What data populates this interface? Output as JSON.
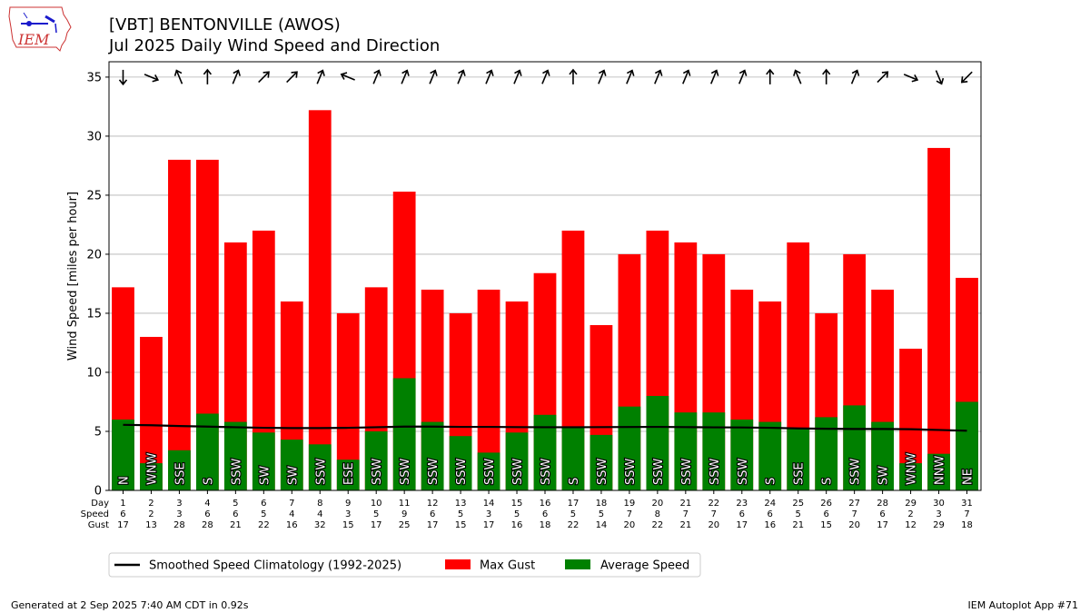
{
  "header": {
    "title_line1": "[VBT] BENTONVILLE (AWOS)",
    "title_line2": "Jul 2025 Daily Wind Speed and Direction",
    "logo_text": "IEM"
  },
  "footer": {
    "generated": "Generated at 2 Sep 2025 7:40 AM CDT in 0.92s",
    "app": "IEM Autoplot App #71"
  },
  "colors": {
    "gust": "#ff0000",
    "average": "#008000",
    "climatology": "#000000",
    "grid": "#b0b0b0"
  },
  "chart_data": {
    "type": "bar",
    "ylabel": "Wind Speed [miles per hour]",
    "ylim": [
      0,
      36.3
    ],
    "yticks": [
      0,
      5,
      10,
      15,
      20,
      25,
      30,
      35
    ],
    "grid": "horizontal",
    "legend_position": "bottom",
    "row_labels": [
      "Day",
      "Speed",
      "Gust"
    ],
    "days": [
      1,
      2,
      3,
      4,
      5,
      6,
      7,
      8,
      9,
      10,
      11,
      12,
      13,
      14,
      15,
      16,
      17,
      18,
      19,
      20,
      21,
      22,
      23,
      24,
      25,
      26,
      27,
      28,
      29,
      30,
      31
    ],
    "speed_labels": [
      6,
      2,
      3,
      6,
      6,
      5,
      4,
      4,
      3,
      5,
      9,
      6,
      5,
      3,
      5,
      6,
      5,
      5,
      7,
      8,
      7,
      7,
      6,
      6,
      5,
      6,
      7,
      6,
      2,
      3,
      7
    ],
    "gust_labels": [
      17,
      13,
      28,
      28,
      21,
      22,
      16,
      32,
      15,
      17,
      25,
      17,
      15,
      17,
      16,
      18,
      22,
      14,
      20,
      22,
      21,
      20,
      17,
      16,
      21,
      15,
      20,
      17,
      12,
      29,
      18
    ],
    "direction_labels": [
      "N",
      "WNW",
      "SSE",
      "S",
      "SSW",
      "SW",
      "SW",
      "SSW",
      "ESE",
      "SSW",
      "SSW",
      "SSW",
      "SSW",
      "SSW",
      "SSW",
      "SSW",
      "S",
      "SSW",
      "SSW",
      "SSW",
      "SSW",
      "SSW",
      "SSW",
      "S",
      "SSE",
      "S",
      "SSW",
      "SW",
      "WNW",
      "NNW",
      "NE"
    ],
    "direction_degrees": [
      0,
      292.5,
      157.5,
      180,
      202.5,
      225,
      225,
      202.5,
      112.5,
      202.5,
      202.5,
      202.5,
      202.5,
      202.5,
      202.5,
      202.5,
      180,
      202.5,
      202.5,
      202.5,
      202.5,
      202.5,
      202.5,
      180,
      157.5,
      180,
      202.5,
      225,
      292.5,
      337.5,
      45
    ],
    "series": [
      {
        "name": "Max Gust",
        "values": [
          17.2,
          13,
          28,
          28,
          21,
          22,
          16,
          32.2,
          15,
          17.2,
          25.3,
          17,
          15,
          17,
          16,
          18.4,
          22,
          14,
          20,
          22,
          21,
          20,
          17,
          16,
          21,
          15,
          20,
          17,
          12,
          29,
          18
        ]
      },
      {
        "name": "Average Speed",
        "values": [
          6.0,
          2.3,
          3.4,
          6.5,
          5.8,
          4.9,
          4.3,
          3.9,
          2.6,
          5.0,
          9.5,
          5.8,
          4.6,
          3.2,
          4.9,
          6.4,
          5.4,
          4.7,
          7.1,
          8.0,
          6.6,
          6.6,
          6.0,
          5.8,
          5.2,
          6.2,
          7.2,
          5.8,
          2.3,
          3.1,
          7.5
        ]
      },
      {
        "name": "Smoothed Speed Climatology (1992-2025)",
        "type": "line",
        "values": [
          5.55,
          5.52,
          5.45,
          5.4,
          5.35,
          5.3,
          5.28,
          5.28,
          5.3,
          5.35,
          5.4,
          5.4,
          5.38,
          5.38,
          5.36,
          5.35,
          5.35,
          5.36,
          5.37,
          5.38,
          5.36,
          5.34,
          5.33,
          5.3,
          5.25,
          5.22,
          5.2,
          5.2,
          5.18,
          5.12,
          5.05
        ]
      }
    ]
  }
}
